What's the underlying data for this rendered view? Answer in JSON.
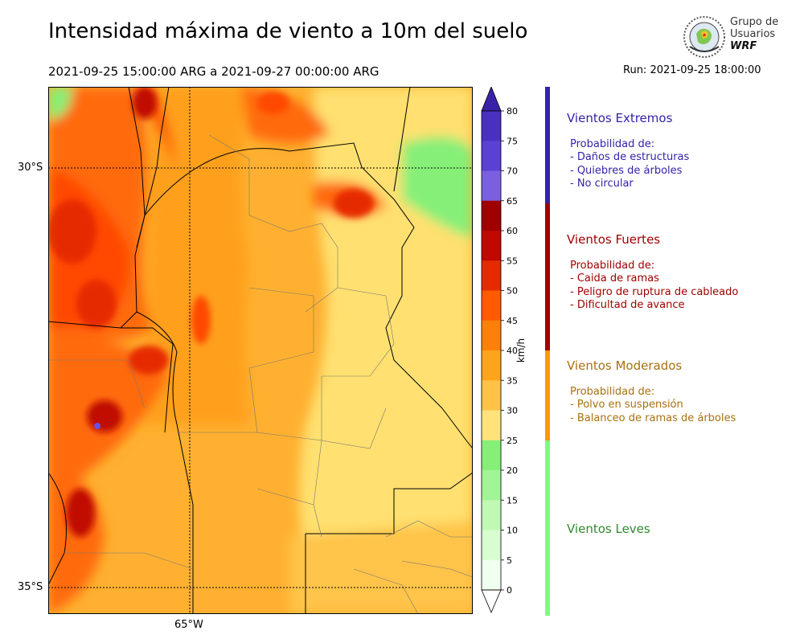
{
  "title": "Intensidad máxima de viento a 10m del suelo",
  "period": "2021-09-25 15:00:00 ARG  a  2021-09-27 00:00:00 ARG",
  "run": "Run: 2021-09-25 18:00:00",
  "logo": {
    "line1": "Grupo de",
    "line2": "Usuarios",
    "line3": "WRF"
  },
  "map": {
    "lat_labels": [
      "30°S",
      "35°S"
    ],
    "lon_labels": [
      "65°W"
    ]
  },
  "colorbar": {
    "unit": "km/h",
    "ticks": [
      "0",
      "5",
      "10",
      "15",
      "20",
      "25",
      "30",
      "35",
      "40",
      "45",
      "50",
      "55",
      "60",
      "65",
      "70",
      "75",
      "80"
    ],
    "colors": [
      "#f0fff0",
      "#d8fdd0",
      "#c0f9b4",
      "#a2f596",
      "#86ef78",
      "#ffe37a",
      "#ffc244",
      "#ffa41a",
      "#ff8008",
      "#ff5a00",
      "#e62a00",
      "#c00800",
      "#a00000",
      "#7a60e0",
      "#5a40d4",
      "#4a30c2",
      "#3a22a8"
    ]
  },
  "categories": [
    {
      "name": "Vientos Extremos",
      "color": "#3322aa",
      "bar": "#3322aa",
      "lines": [
        "Probabilidad de:",
        "- Daños de estructuras",
        "- Quiebres de árboles",
        "- No circular"
      ]
    },
    {
      "name": "Vientos Fuertes",
      "color": "#a00000",
      "bar": "#a00000",
      "lines": [
        "Probabilidad de:",
        "- Caida de ramas",
        "- Peligro de ruptura de cableado",
        "- Dificultad de avance"
      ]
    },
    {
      "name": "Vientos Moderados",
      "color": "#a87010",
      "bar": "#ff9900",
      "lines": [
        "Probabilidad de:",
        "- Polvo en suspensión",
        "- Balanceo de ramas de árboles"
      ]
    },
    {
      "name": "Vientos Leves",
      "color": "#2e8a2e",
      "bar": "#7aff7a",
      "lines": []
    }
  ]
}
